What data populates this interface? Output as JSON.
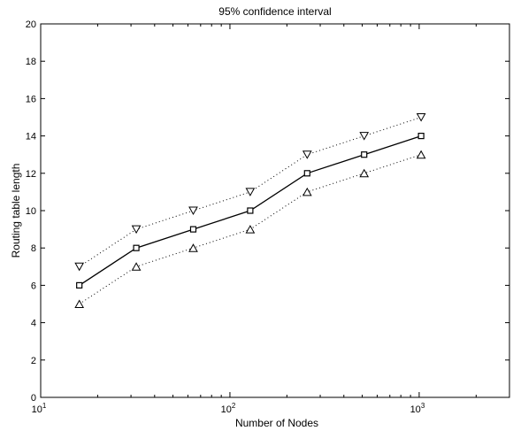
{
  "chart_data": {
    "type": "line",
    "title": "95% confidence interval",
    "xlabel": "Number of Nodes",
    "ylabel": "Routing table length",
    "xscale": "log",
    "xlim": [
      10,
      3000
    ],
    "ylim": [
      0,
      20
    ],
    "xticks": [
      {
        "value": 10,
        "base": "10",
        "exp": "1"
      },
      {
        "value": 100,
        "base": "10",
        "exp": "2"
      },
      {
        "value": 1000,
        "base": "10",
        "exp": "3"
      }
    ],
    "yticks": [
      "0",
      "2",
      "4",
      "6",
      "8",
      "10",
      "12",
      "14",
      "16",
      "18",
      "20"
    ],
    "grid": false,
    "x": [
      16,
      32,
      64,
      128,
      256,
      512,
      1024
    ],
    "series": [
      {
        "role": "mean",
        "marker": "square",
        "line": "solid",
        "color": "#000000",
        "values": [
          6,
          8,
          9,
          10,
          12,
          13,
          14
        ]
      },
      {
        "role": "upper",
        "marker": "triangle-down",
        "line": "dotted",
        "color": "#000000",
        "values": [
          7,
          9,
          10,
          11,
          13,
          14,
          15
        ]
      },
      {
        "role": "lower",
        "marker": "triangle-up",
        "line": "dotted",
        "color": "#000000",
        "values": [
          5,
          7,
          8,
          9,
          11,
          12,
          13
        ]
      }
    ]
  }
}
